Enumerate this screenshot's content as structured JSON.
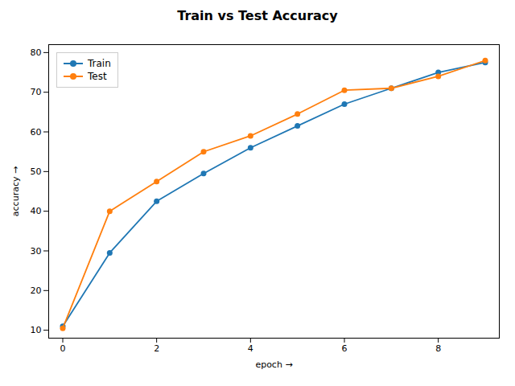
{
  "chart_data": {
    "type": "line",
    "title": "Train vs Test Accuracy",
    "xlabel": "epoch",
    "ylabel": "accuracy",
    "x": [
      0,
      1,
      2,
      3,
      4,
      5,
      6,
      7,
      8,
      9
    ],
    "series": [
      {
        "name": "Train",
        "color": "#1f77b4",
        "values": [
          11,
          29.5,
          42.5,
          49.5,
          56,
          61.5,
          67,
          71,
          75,
          77.5
        ]
      },
      {
        "name": "Test",
        "color": "#ff7f0e",
        "values": [
          10.5,
          40,
          47.5,
          55,
          59,
          64.5,
          70.5,
          71,
          74,
          78
        ]
      }
    ],
    "xlim": [
      -0.3,
      9.3
    ],
    "ylim": [
      8,
      82
    ],
    "xticks": [
      0,
      2,
      4,
      6,
      8
    ],
    "yticks": [
      10,
      20,
      30,
      40,
      50,
      60,
      70,
      80
    ],
    "marker": "circle",
    "legend": "upper left"
  }
}
